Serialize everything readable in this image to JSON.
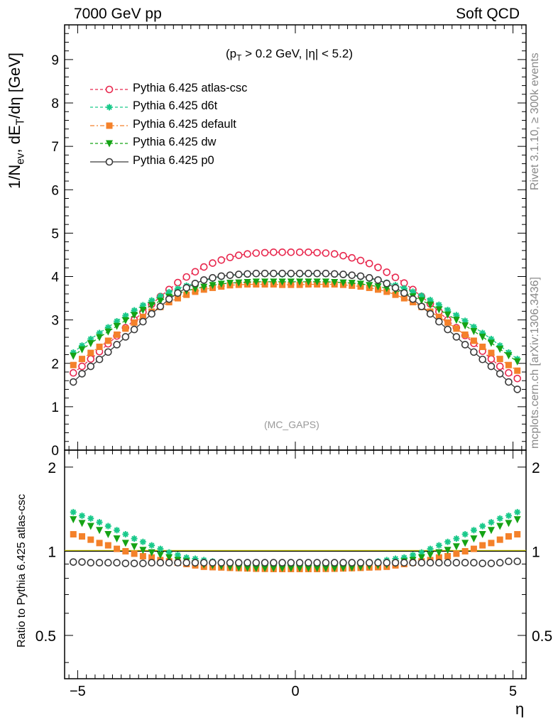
{
  "header": {
    "left": "7000 GeV pp",
    "right": "Soft QCD"
  },
  "side_labels": {
    "rivet": "Rivet 3.1.10, ≥ 300k events",
    "mcplots": "mcplots.cern.ch [arXiv:1306.3436]"
  },
  "annotation": {
    "cuts_a": "(p",
    "cuts_sub": "T",
    "cuts_b": " > 0.2 GeV, |η| < 5.2)",
    "watermark": "(MC_GAPS)"
  },
  "ylabel_main": {
    "a": "1/N",
    "sub1": "ev",
    "b": ", dE",
    "sub2": "T",
    "c": "/dη [GeV]"
  },
  "ylabel_ratio": "Ratio to Pythia 6.425 atlas-csc",
  "xlabel": "η",
  "chart_data": [
    {
      "type": "line",
      "xlim": [
        -5.3,
        5.3
      ],
      "ylim": [
        0,
        9.8
      ],
      "yticks": [
        "0",
        "1",
        "2",
        "3",
        "4",
        "5",
        "6",
        "7",
        "8",
        "9"
      ],
      "xticks": [
        "−5",
        "0",
        "5"
      ],
      "legend_position": "top-left",
      "x": [
        -5.1,
        -4.9,
        -4.7,
        -4.5,
        -4.3,
        -4.1,
        -3.9,
        -3.7,
        -3.5,
        -3.3,
        -3.1,
        -2.9,
        -2.7,
        -2.5,
        -2.3,
        -2.1,
        -1.9,
        -1.7,
        -1.5,
        -1.3,
        -1.1,
        -0.9,
        -0.7,
        -0.5,
        -0.3,
        -0.1,
        0.1,
        0.3,
        0.5,
        0.7,
        0.9,
        1.1,
        1.3,
        1.5,
        1.7,
        1.9,
        2.1,
        2.3,
        2.5,
        2.7,
        2.9,
        3.1,
        3.3,
        3.5,
        3.7,
        3.9,
        4.1,
        4.3,
        4.5,
        4.7,
        4.9,
        5.1
      ],
      "series": [
        {
          "name": "Pythia 6.425 atlas-csc",
          "color": "#e8274d",
          "marker": "open-circle",
          "dash": "4,3",
          "values": [
            1.78,
            1.93,
            2.1,
            2.27,
            2.45,
            2.63,
            2.82,
            3.0,
            3.18,
            3.36,
            3.54,
            3.7,
            3.86,
            3.99,
            4.11,
            4.22,
            4.31,
            4.38,
            4.44,
            4.49,
            4.52,
            4.54,
            4.55,
            4.56,
            4.56,
            4.56,
            4.56,
            4.56,
            4.55,
            4.54,
            4.52,
            4.48,
            4.43,
            4.37,
            4.3,
            4.21,
            4.1,
            3.98,
            3.85,
            3.7,
            3.54,
            3.37,
            3.19,
            3.0,
            2.82,
            2.64,
            2.46,
            2.28,
            2.1,
            1.93,
            1.78,
            1.65
          ]
        },
        {
          "name": "Pythia 6.425 d6t",
          "color": "#19c98a",
          "marker": "star",
          "dash": "4,3",
          "values": [
            2.25,
            2.41,
            2.56,
            2.7,
            2.83,
            2.97,
            3.1,
            3.22,
            3.34,
            3.45,
            3.55,
            3.64,
            3.72,
            3.79,
            3.85,
            3.91,
            3.95,
            3.99,
            4.02,
            4.04,
            4.05,
            4.06,
            4.06,
            4.06,
            4.05,
            4.05,
            4.05,
            4.06,
            4.06,
            4.06,
            4.05,
            4.04,
            4.02,
            3.99,
            3.95,
            3.91,
            3.86,
            3.8,
            3.73,
            3.65,
            3.56,
            3.46,
            3.35,
            3.23,
            3.11,
            2.98,
            2.84,
            2.7,
            2.56,
            2.41,
            2.25,
            2.1
          ]
        },
        {
          "name": "Pythia 6.425 default",
          "color": "#f4812a",
          "marker": "filled-square",
          "dash": "6,3,2,3",
          "values": [
            1.96,
            2.1,
            2.24,
            2.38,
            2.52,
            2.66,
            2.8,
            2.94,
            3.07,
            3.19,
            3.3,
            3.41,
            3.5,
            3.58,
            3.65,
            3.7,
            3.74,
            3.77,
            3.8,
            3.81,
            3.82,
            3.82,
            3.82,
            3.82,
            3.81,
            3.81,
            3.81,
            3.82,
            3.82,
            3.82,
            3.82,
            3.81,
            3.79,
            3.77,
            3.74,
            3.7,
            3.65,
            3.58,
            3.5,
            3.41,
            3.3,
            3.19,
            3.07,
            2.94,
            2.8,
            2.66,
            2.52,
            2.38,
            2.24,
            2.1,
            1.96,
            1.83
          ]
        },
        {
          "name": "Pythia 6.425 dw",
          "color": "#15a315",
          "marker": "filled-triangle-down",
          "dash": "4,3",
          "values": [
            2.17,
            2.32,
            2.46,
            2.6,
            2.73,
            2.86,
            2.99,
            3.11,
            3.23,
            3.34,
            3.44,
            3.53,
            3.61,
            3.67,
            3.72,
            3.76,
            3.8,
            3.83,
            3.85,
            3.86,
            3.87,
            3.88,
            3.88,
            3.88,
            3.88,
            3.88,
            3.88,
            3.88,
            3.88,
            3.88,
            3.87,
            3.86,
            3.85,
            3.83,
            3.8,
            3.77,
            3.73,
            3.68,
            3.62,
            3.54,
            3.45,
            3.35,
            3.24,
            3.12,
            3.0,
            2.87,
            2.74,
            2.61,
            2.47,
            2.33,
            2.18,
            2.04
          ]
        },
        {
          "name": "Pythia 6.425 p0",
          "color": "#3a3a3a",
          "marker": "open-circle",
          "dash": "",
          "values": [
            1.57,
            1.76,
            1.93,
            2.09,
            2.26,
            2.43,
            2.61,
            2.78,
            2.96,
            3.14,
            3.31,
            3.48,
            3.62,
            3.74,
            3.84,
            3.92,
            3.97,
            4.01,
            4.03,
            4.05,
            4.06,
            4.07,
            4.07,
            4.07,
            4.07,
            4.07,
            4.07,
            4.07,
            4.07,
            4.07,
            4.06,
            4.05,
            4.03,
            4.01,
            3.97,
            3.92,
            3.84,
            3.74,
            3.62,
            3.48,
            3.31,
            3.14,
            2.96,
            2.78,
            2.61,
            2.43,
            2.26,
            2.09,
            1.93,
            1.76,
            1.57,
            1.4
          ]
        }
      ]
    },
    {
      "type": "line",
      "xlim": [
        -5.3,
        5.3
      ],
      "ylim": [
        0.35,
        2.3
      ],
      "log_y": true,
      "yticks": [
        "0.5",
        "1",
        "2"
      ],
      "xticks": [
        "−5",
        "0",
        "5"
      ],
      "reference_line": 1,
      "x": [
        -5.1,
        -4.9,
        -4.7,
        -4.5,
        -4.3,
        -4.1,
        -3.9,
        -3.7,
        -3.5,
        -3.3,
        -3.1,
        -2.9,
        -2.7,
        -2.5,
        -2.3,
        -2.1,
        -1.9,
        -1.7,
        -1.5,
        -1.3,
        -1.1,
        -0.9,
        -0.7,
        -0.5,
        -0.3,
        -0.1,
        0.1,
        0.3,
        0.5,
        0.7,
        0.9,
        1.1,
        1.3,
        1.5,
        1.7,
        1.9,
        2.1,
        2.3,
        2.5,
        2.7,
        2.9,
        3.1,
        3.3,
        3.5,
        3.7,
        3.9,
        4.1,
        4.3,
        4.5,
        4.7,
        4.9,
        5.1
      ],
      "series": [
        {
          "name": "Pythia 6.425 d6t",
          "color": "#19c98a",
          "marker": "star",
          "values": [
            1.38,
            1.34,
            1.31,
            1.27,
            1.23,
            1.19,
            1.15,
            1.11,
            1.08,
            1.05,
            1.02,
            0.99,
            0.97,
            0.95,
            0.94,
            0.93,
            0.92,
            0.915,
            0.91,
            0.905,
            0.9,
            0.897,
            0.895,
            0.894,
            0.893,
            0.893,
            0.893,
            0.893,
            0.894,
            0.895,
            0.897,
            0.9,
            0.905,
            0.91,
            0.915,
            0.92,
            0.93,
            0.94,
            0.95,
            0.97,
            0.99,
            1.02,
            1.05,
            1.08,
            1.11,
            1.15,
            1.19,
            1.23,
            1.27,
            1.31,
            1.34,
            1.38
          ]
        },
        {
          "name": "Pythia 6.425 default",
          "color": "#f4812a",
          "marker": "filled-square",
          "values": [
            1.15,
            1.13,
            1.1,
            1.07,
            1.05,
            1.02,
            1.0,
            0.98,
            0.96,
            0.95,
            0.93,
            0.92,
            0.91,
            0.9,
            0.89,
            0.88,
            0.877,
            0.875,
            0.872,
            0.87,
            0.868,
            0.866,
            0.865,
            0.864,
            0.864,
            0.864,
            0.864,
            0.864,
            0.864,
            0.865,
            0.866,
            0.868,
            0.87,
            0.872,
            0.875,
            0.877,
            0.88,
            0.89,
            0.9,
            0.91,
            0.92,
            0.93,
            0.95,
            0.96,
            0.98,
            1.0,
            1.02,
            1.05,
            1.07,
            1.1,
            1.13,
            1.15
          ]
        },
        {
          "name": "Pythia 6.425 dw",
          "color": "#15a315",
          "marker": "filled-triangle-down",
          "values": [
            1.3,
            1.26,
            1.23,
            1.19,
            1.15,
            1.11,
            1.07,
            1.04,
            1.01,
            0.99,
            0.97,
            0.95,
            0.93,
            0.92,
            0.905,
            0.895,
            0.89,
            0.885,
            0.878,
            0.874,
            0.872,
            0.87,
            0.87,
            0.87,
            0.87,
            0.87,
            0.87,
            0.87,
            0.87,
            0.87,
            0.87,
            0.872,
            0.874,
            0.878,
            0.885,
            0.89,
            0.895,
            0.905,
            0.92,
            0.93,
            0.95,
            0.97,
            0.99,
            1.01,
            1.04,
            1.07,
            1.11,
            1.15,
            1.19,
            1.23,
            1.26,
            1.3
          ]
        },
        {
          "name": "Pythia 6.425 p0",
          "color": "#3a3a3a",
          "marker": "open-circle",
          "values": [
            0.915,
            0.915,
            0.91,
            0.91,
            0.91,
            0.91,
            0.905,
            0.905,
            0.905,
            0.91,
            0.91,
            0.91,
            0.91,
            0.91,
            0.91,
            0.91,
            0.91,
            0.91,
            0.91,
            0.91,
            0.91,
            0.91,
            0.91,
            0.91,
            0.91,
            0.91,
            0.91,
            0.91,
            0.91,
            0.91,
            0.91,
            0.91,
            0.91,
            0.91,
            0.91,
            0.91,
            0.91,
            0.91,
            0.91,
            0.91,
            0.91,
            0.91,
            0.91,
            0.91,
            0.91,
            0.91,
            0.91,
            0.905,
            0.905,
            0.91,
            0.92,
            0.92
          ]
        }
      ]
    }
  ]
}
